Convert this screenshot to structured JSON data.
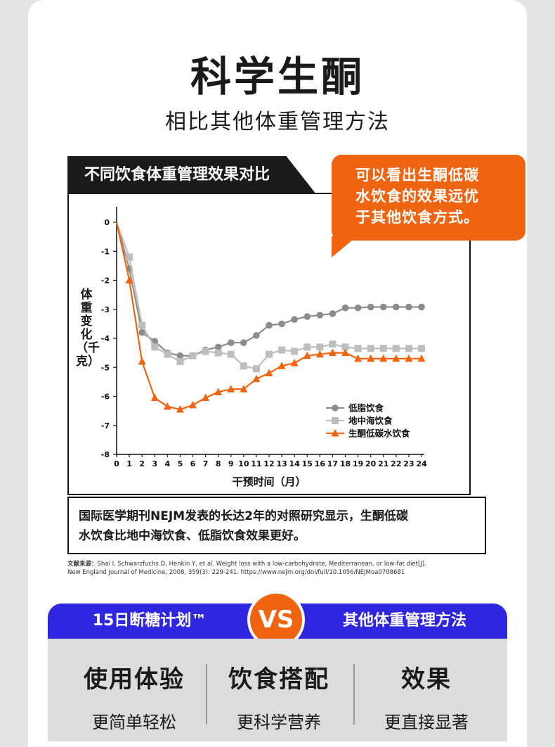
{
  "header": {
    "title": "科学生酮",
    "subtitle": "相比其他体重管理方法"
  },
  "chart_card": {
    "tab_label": "不同饮食体重管理效果对比",
    "callout": [
      "可以看出生酮低碳",
      "水饮食的效果远优",
      "于其他饮食方式。"
    ]
  },
  "chart_data": {
    "type": "line",
    "xlabel": "干预时间（月）",
    "ylabel": "体重变化（千克）",
    "xlim": [
      0,
      24
    ],
    "ylim": [
      -8,
      0
    ],
    "x_ticks": [
      0,
      1,
      2,
      3,
      4,
      5,
      6,
      7,
      8,
      9,
      10,
      11,
      12,
      13,
      14,
      15,
      16,
      17,
      18,
      19,
      20,
      21,
      22,
      23,
      24
    ],
    "y_ticks": [
      0,
      -1,
      -2,
      -3,
      -4,
      -5,
      -6,
      -7,
      -8
    ],
    "legend_position": "bottom-right",
    "series": [
      {
        "name": "低脂饮食",
        "color": "#8c8c8c",
        "marker": "circle",
        "x": [
          0,
          1,
          2,
          3,
          4,
          5,
          6,
          7,
          8,
          9,
          10,
          11,
          12,
          13,
          14,
          15,
          16,
          17,
          18,
          19,
          20,
          21,
          22,
          23,
          24
        ],
        "values": [
          0,
          -1.6,
          -3.8,
          -4.1,
          -4.5,
          -4.6,
          -4.6,
          -4.4,
          -4.3,
          -4.15,
          -4.15,
          -3.9,
          -3.55,
          -3.5,
          -3.35,
          -3.25,
          -3.2,
          -3.15,
          -2.95,
          -2.95,
          -2.92,
          -2.92,
          -2.92,
          -2.92,
          -2.92
        ]
      },
      {
        "name": "地中海饮食",
        "color": "#bdbdbd",
        "marker": "square",
        "x": [
          0,
          1,
          2,
          3,
          4,
          5,
          6,
          7,
          8,
          9,
          10,
          11,
          12,
          13,
          14,
          15,
          16,
          17,
          18,
          19,
          20,
          21,
          22,
          23,
          24
        ],
        "values": [
          0,
          -1.2,
          -3.55,
          -4.3,
          -4.55,
          -4.8,
          -4.6,
          -4.45,
          -4.5,
          -4.55,
          -4.95,
          -5.05,
          -4.55,
          -4.4,
          -4.45,
          -4.3,
          -4.3,
          -4.2,
          -4.3,
          -4.35,
          -4.35,
          -4.35,
          -4.35,
          -4.35,
          -4.35
        ]
      },
      {
        "name": "生酮低碳水饮食",
        "color": "#ee6411",
        "marker": "triangle",
        "x": [
          0,
          1,
          2,
          3,
          4,
          5,
          6,
          7,
          8,
          9,
          10,
          11,
          12,
          13,
          14,
          15,
          16,
          17,
          18,
          19,
          20,
          21,
          22,
          23,
          24
        ],
        "values": [
          0,
          -2.0,
          -4.8,
          -6.05,
          -6.35,
          -6.45,
          -6.3,
          -6.05,
          -5.85,
          -5.75,
          -5.75,
          -5.4,
          -5.2,
          -4.95,
          -4.85,
          -4.6,
          -4.55,
          -4.5,
          -4.5,
          -4.7,
          -4.7,
          -4.7,
          -4.7,
          -4.7,
          -4.7
        ]
      }
    ]
  },
  "caption": {
    "line1": "国际医学期刊NEJM发表的长达2年的对照研究显示，生酮低碳",
    "line2": "水饮食比地中海饮食、低脂饮食效果更好。"
  },
  "references": {
    "label": "文献来源：",
    "line1": "Shai I, Schwarzfuchs D, Henkin Y, et al. Weight loss with a low-carbohydrate, Mediterranean, or low-fat diet[J].",
    "line2": "New England Journal of Medicine, 2008, 359(3): 229-241. https://www.nejm.org/doi/full/10.1056/NEJMoa0708681"
  },
  "comparison": {
    "left": "15日断糖计划™",
    "vs": "VS",
    "right": "其他体重管理方法",
    "columns": [
      {
        "heading": "使用体验",
        "detail": "更简单轻松"
      },
      {
        "heading": "饮食搭配",
        "detail": "更科学营养"
      },
      {
        "heading": "效果",
        "detail": "更直接显著"
      }
    ]
  }
}
